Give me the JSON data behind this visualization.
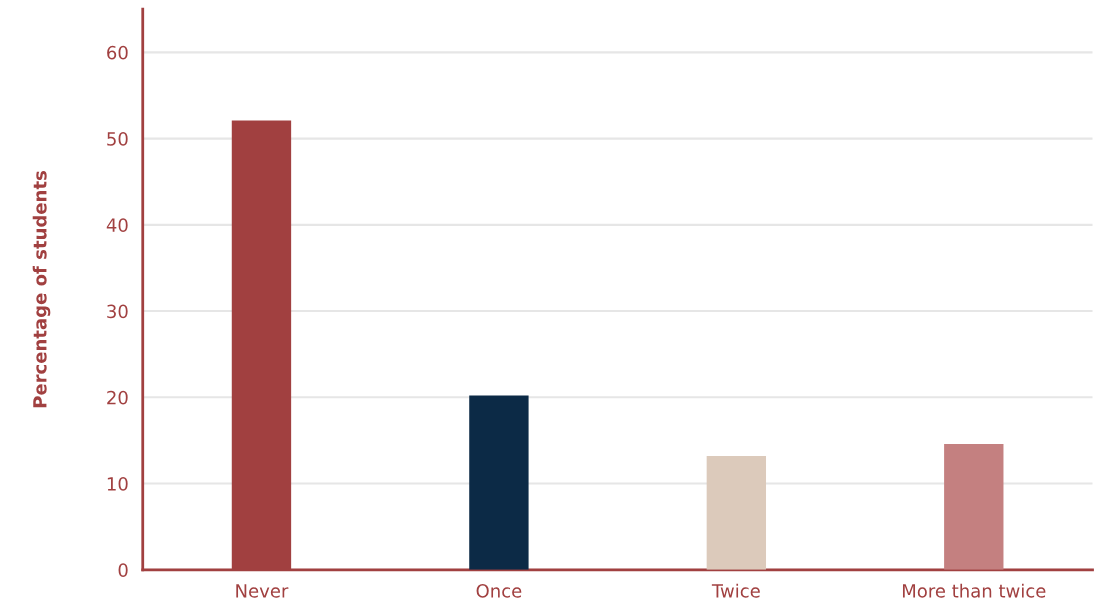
{
  "chart_data": {
    "type": "bar",
    "ylabel": "Percentage of students",
    "categories": [
      "Never",
      "Once",
      "Twice",
      "More than twice"
    ],
    "values": [
      52.1,
      20.2,
      13.2,
      14.6
    ],
    "colors": [
      "#a14040",
      "#0c2a46",
      "#dccabb",
      "#c48080"
    ],
    "ylim": [
      0,
      65
    ],
    "yticks": [
      0,
      10,
      20,
      30,
      40,
      50,
      60
    ],
    "grid": "y",
    "legend": false
  }
}
